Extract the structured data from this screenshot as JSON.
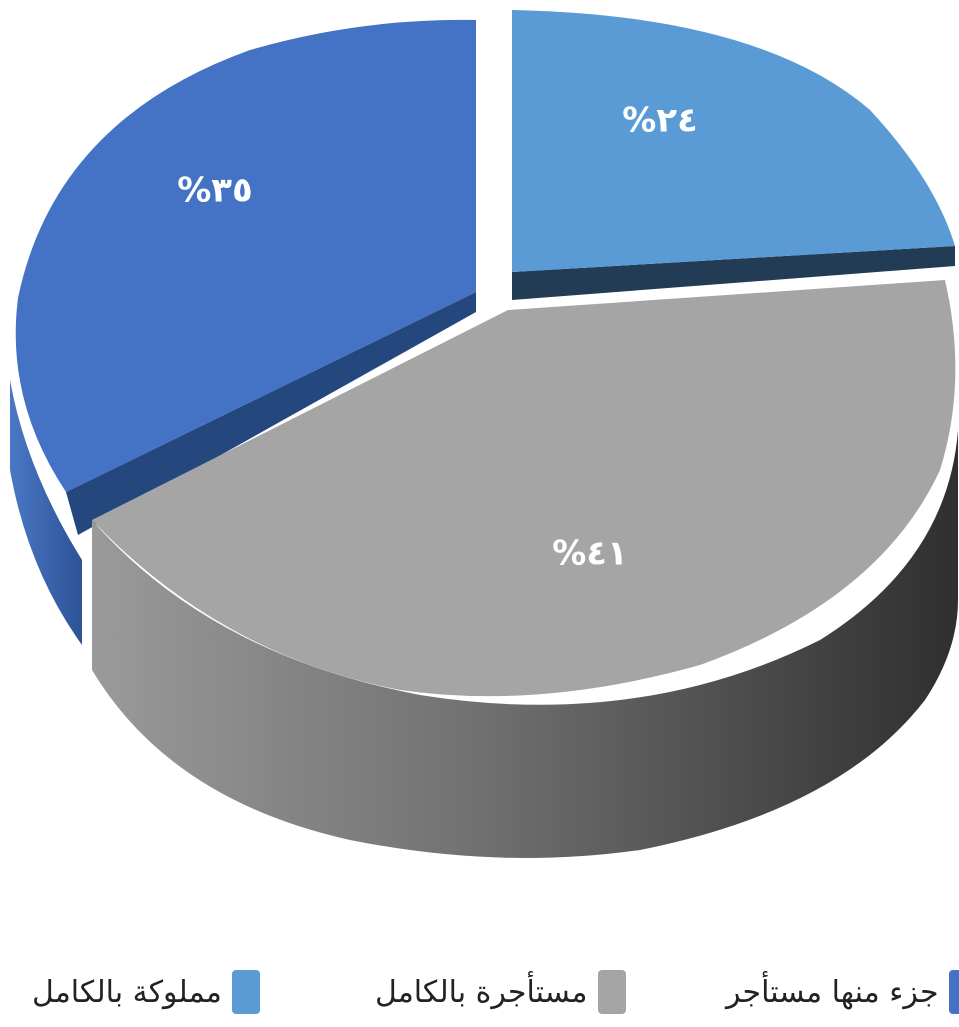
{
  "chart_data": {
    "type": "pie",
    "style": "3d-exploded",
    "slices": [
      {
        "name": "مملوكة بالكامل",
        "value": 24,
        "label": "%٢٤",
        "color": "#5b9bd5"
      },
      {
        "name": "مستأجرة بالكامل",
        "value": 41,
        "label": "%٤١",
        "color": "#a5a5a5"
      },
      {
        "name": "جزء منها مستأجر",
        "value": 35,
        "label": "%٣٥",
        "color": "#4472c4"
      }
    ],
    "legend_position": "bottom"
  }
}
